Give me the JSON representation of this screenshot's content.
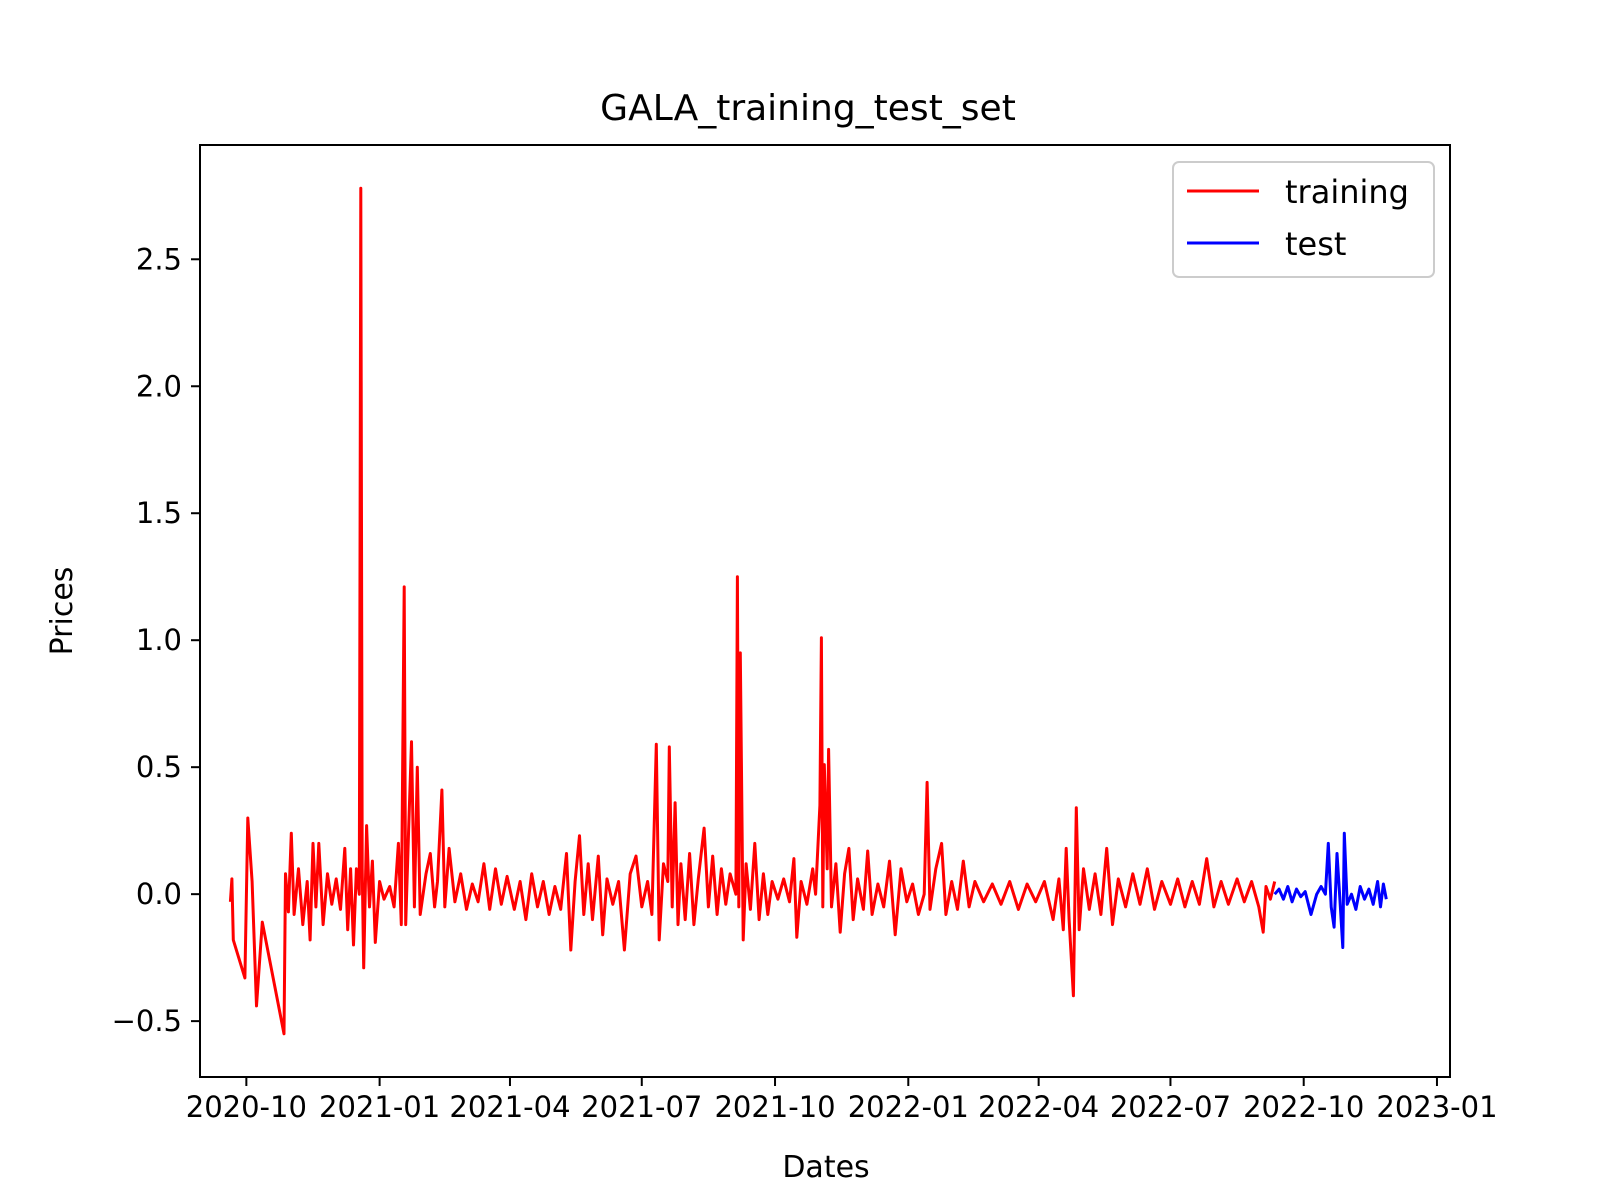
{
  "chart_data": {
    "type": "line",
    "title": "GALA_training_test_set",
    "xlabel": "Dates",
    "ylabel": "Prices",
    "xlim": [
      "2020-08-30",
      "2023-01-10"
    ],
    "ylim": [
      -0.72,
      2.95
    ],
    "x_ticks": [
      "2020-10",
      "2021-01",
      "2021-04",
      "2021-07",
      "2021-10",
      "2022-01",
      "2022-04",
      "2022-07",
      "2022-10",
      "2023-01"
    ],
    "y_ticks": [
      -0.5,
      0.0,
      0.5,
      1.0,
      1.5,
      2.0,
      2.5
    ],
    "y_tick_labels": [
      "−0.5",
      "0.0",
      "0.5",
      "1.0",
      "1.5",
      "2.0",
      "2.5"
    ],
    "legend": {
      "position": "top-right"
    },
    "grid": false,
    "series": [
      {
        "name": "training",
        "color": "#ff0000",
        "points": [
          [
            "2020-09-20",
            -0.03
          ],
          [
            "2020-09-21",
            0.06
          ],
          [
            "2020-09-22",
            -0.18
          ],
          [
            "2020-09-30",
            -0.33
          ],
          [
            "2020-10-02",
            0.3
          ],
          [
            "2020-10-05",
            0.05
          ],
          [
            "2020-10-08",
            -0.44
          ],
          [
            "2020-10-12",
            -0.11
          ],
          [
            "2020-10-27",
            -0.55
          ],
          [
            "2020-10-28",
            0.08
          ],
          [
            "2020-10-30",
            -0.07
          ],
          [
            "2020-11-01",
            0.24
          ],
          [
            "2020-11-03",
            -0.08
          ],
          [
            "2020-11-06",
            0.1
          ],
          [
            "2020-11-09",
            -0.12
          ],
          [
            "2020-11-12",
            0.05
          ],
          [
            "2020-11-14",
            -0.18
          ],
          [
            "2020-11-16",
            0.2
          ],
          [
            "2020-11-18",
            -0.05
          ],
          [
            "2020-11-20",
            0.2
          ],
          [
            "2020-11-23",
            -0.12
          ],
          [
            "2020-11-26",
            0.08
          ],
          [
            "2020-11-29",
            -0.04
          ],
          [
            "2020-12-02",
            0.06
          ],
          [
            "2020-12-05",
            -0.06
          ],
          [
            "2020-12-08",
            0.18
          ],
          [
            "2020-12-10",
            -0.14
          ],
          [
            "2020-12-12",
            0.1
          ],
          [
            "2020-12-14",
            -0.2
          ],
          [
            "2020-12-16",
            0.1
          ],
          [
            "2020-12-18",
            0.0
          ],
          [
            "2020-12-19",
            2.78
          ],
          [
            "2020-12-20",
            0.1
          ],
          [
            "2020-12-21",
            -0.29
          ],
          [
            "2020-12-23",
            0.27
          ],
          [
            "2020-12-25",
            -0.05
          ],
          [
            "2020-12-27",
            0.13
          ],
          [
            "2020-12-29",
            -0.19
          ],
          [
            "2021-01-01",
            0.05
          ],
          [
            "2021-01-04",
            -0.02
          ],
          [
            "2021-01-08",
            0.03
          ],
          [
            "2021-01-11",
            -0.05
          ],
          [
            "2021-01-14",
            0.2
          ],
          [
            "2021-01-16",
            -0.12
          ],
          [
            "2021-01-18",
            1.21
          ],
          [
            "2021-01-19",
            -0.12
          ],
          [
            "2021-01-21",
            0.25
          ],
          [
            "2021-01-23",
            0.6
          ],
          [
            "2021-01-25",
            -0.05
          ],
          [
            "2021-01-27",
            0.5
          ],
          [
            "2021-01-29",
            -0.08
          ],
          [
            "2021-02-02",
            0.08
          ],
          [
            "2021-02-05",
            0.16
          ],
          [
            "2021-02-08",
            -0.05
          ],
          [
            "2021-02-10",
            0.05
          ],
          [
            "2021-02-13",
            0.41
          ],
          [
            "2021-02-15",
            -0.05
          ],
          [
            "2021-02-18",
            0.18
          ],
          [
            "2021-02-22",
            -0.03
          ],
          [
            "2021-02-26",
            0.08
          ],
          [
            "2021-03-02",
            -0.06
          ],
          [
            "2021-03-06",
            0.04
          ],
          [
            "2021-03-10",
            -0.03
          ],
          [
            "2021-03-14",
            0.12
          ],
          [
            "2021-03-18",
            -0.06
          ],
          [
            "2021-03-22",
            0.1
          ],
          [
            "2021-03-26",
            -0.04
          ],
          [
            "2021-03-30",
            0.07
          ],
          [
            "2021-04-04",
            -0.06
          ],
          [
            "2021-04-08",
            0.05
          ],
          [
            "2021-04-12",
            -0.1
          ],
          [
            "2021-04-16",
            0.08
          ],
          [
            "2021-04-20",
            -0.05
          ],
          [
            "2021-04-24",
            0.05
          ],
          [
            "2021-04-28",
            -0.08
          ],
          [
            "2021-05-02",
            0.03
          ],
          [
            "2021-05-06",
            -0.06
          ],
          [
            "2021-05-10",
            0.16
          ],
          [
            "2021-05-13",
            -0.22
          ],
          [
            "2021-05-16",
            0.05
          ],
          [
            "2021-05-19",
            0.23
          ],
          [
            "2021-05-22",
            -0.08
          ],
          [
            "2021-05-25",
            0.12
          ],
          [
            "2021-05-28",
            -0.1
          ],
          [
            "2021-06-01",
            0.15
          ],
          [
            "2021-06-04",
            -0.16
          ],
          [
            "2021-06-07",
            0.06
          ],
          [
            "2021-06-11",
            -0.04
          ],
          [
            "2021-06-15",
            0.05
          ],
          [
            "2021-06-19",
            -0.22
          ],
          [
            "2021-06-23",
            0.08
          ],
          [
            "2021-06-27",
            0.15
          ],
          [
            "2021-07-01",
            -0.05
          ],
          [
            "2021-07-05",
            0.05
          ],
          [
            "2021-07-08",
            -0.08
          ],
          [
            "2021-07-11",
            0.59
          ],
          [
            "2021-07-13",
            -0.18
          ],
          [
            "2021-07-16",
            0.12
          ],
          [
            "2021-07-19",
            0.05
          ],
          [
            "2021-07-20",
            0.58
          ],
          [
            "2021-07-22",
            -0.05
          ],
          [
            "2021-07-24",
            0.36
          ],
          [
            "2021-07-26",
            -0.12
          ],
          [
            "2021-07-28",
            0.12
          ],
          [
            "2021-07-31",
            -0.1
          ],
          [
            "2021-08-03",
            0.16
          ],
          [
            "2021-08-06",
            -0.12
          ],
          [
            "2021-08-09",
            0.06
          ],
          [
            "2021-08-13",
            0.26
          ],
          [
            "2021-08-16",
            -0.05
          ],
          [
            "2021-08-19",
            0.15
          ],
          [
            "2021-08-22",
            -0.08
          ],
          [
            "2021-08-25",
            0.1
          ],
          [
            "2021-08-28",
            -0.04
          ],
          [
            "2021-08-31",
            0.08
          ],
          [
            "2021-09-04",
            0.0
          ],
          [
            "2021-09-05",
            1.25
          ],
          [
            "2021-09-06",
            -0.05
          ],
          [
            "2021-09-07",
            0.95
          ],
          [
            "2021-09-09",
            -0.18
          ],
          [
            "2021-09-11",
            0.12
          ],
          [
            "2021-09-14",
            -0.06
          ],
          [
            "2021-09-17",
            0.2
          ],
          [
            "2021-09-20",
            -0.1
          ],
          [
            "2021-09-23",
            0.08
          ],
          [
            "2021-09-26",
            -0.08
          ],
          [
            "2021-09-29",
            0.05
          ],
          [
            "2021-10-03",
            -0.02
          ],
          [
            "2021-10-07",
            0.06
          ],
          [
            "2021-10-11",
            -0.03
          ],
          [
            "2021-10-14",
            0.14
          ],
          [
            "2021-10-16",
            -0.17
          ],
          [
            "2021-10-19",
            0.05
          ],
          [
            "2021-10-23",
            -0.04
          ],
          [
            "2021-10-27",
            0.1
          ],
          [
            "2021-10-29",
            0.0
          ],
          [
            "2021-11-01",
            0.35
          ],
          [
            "2021-11-02",
            1.01
          ],
          [
            "2021-11-03",
            -0.05
          ],
          [
            "2021-11-04",
            0.51
          ],
          [
            "2021-11-06",
            0.1
          ],
          [
            "2021-11-07",
            0.57
          ],
          [
            "2021-11-09",
            -0.05
          ],
          [
            "2021-11-12",
            0.12
          ],
          [
            "2021-11-15",
            -0.15
          ],
          [
            "2021-11-18",
            0.08
          ],
          [
            "2021-11-21",
            0.18
          ],
          [
            "2021-11-24",
            -0.1
          ],
          [
            "2021-11-27",
            0.06
          ],
          [
            "2021-12-01",
            -0.06
          ],
          [
            "2021-12-04",
            0.17
          ],
          [
            "2021-12-07",
            -0.08
          ],
          [
            "2021-12-11",
            0.04
          ],
          [
            "2021-12-15",
            -0.05
          ],
          [
            "2021-12-19",
            0.13
          ],
          [
            "2021-12-23",
            -0.16
          ],
          [
            "2021-12-27",
            0.1
          ],
          [
            "2021-12-31",
            -0.03
          ],
          [
            "2022-01-04",
            0.04
          ],
          [
            "2022-01-08",
            -0.08
          ],
          [
            "2022-01-12",
            0.0
          ],
          [
            "2022-01-14",
            0.44
          ],
          [
            "2022-01-16",
            -0.06
          ],
          [
            "2022-01-20",
            0.1
          ],
          [
            "2022-01-24",
            0.2
          ],
          [
            "2022-01-27",
            -0.08
          ],
          [
            "2022-01-31",
            0.05
          ],
          [
            "2022-02-04",
            -0.06
          ],
          [
            "2022-02-08",
            0.13
          ],
          [
            "2022-02-12",
            -0.05
          ],
          [
            "2022-02-16",
            0.05
          ],
          [
            "2022-02-22",
            -0.03
          ],
          [
            "2022-02-28",
            0.04
          ],
          [
            "2022-03-06",
            -0.04
          ],
          [
            "2022-03-12",
            0.05
          ],
          [
            "2022-03-18",
            -0.06
          ],
          [
            "2022-03-24",
            0.04
          ],
          [
            "2022-03-30",
            -0.03
          ],
          [
            "2022-04-05",
            0.05
          ],
          [
            "2022-04-11",
            -0.1
          ],
          [
            "2022-04-15",
            0.06
          ],
          [
            "2022-04-18",
            -0.14
          ],
          [
            "2022-04-20",
            0.18
          ],
          [
            "2022-04-22",
            -0.1
          ],
          [
            "2022-04-25",
            -0.4
          ],
          [
            "2022-04-27",
            0.34
          ],
          [
            "2022-04-29",
            -0.14
          ],
          [
            "2022-05-02",
            0.1
          ],
          [
            "2022-05-06",
            -0.06
          ],
          [
            "2022-05-10",
            0.08
          ],
          [
            "2022-05-14",
            -0.08
          ],
          [
            "2022-05-18",
            0.18
          ],
          [
            "2022-05-22",
            -0.12
          ],
          [
            "2022-05-26",
            0.06
          ],
          [
            "2022-05-31",
            -0.05
          ],
          [
            "2022-06-05",
            0.08
          ],
          [
            "2022-06-10",
            -0.04
          ],
          [
            "2022-06-15",
            0.1
          ],
          [
            "2022-06-20",
            -0.06
          ],
          [
            "2022-06-25",
            0.05
          ],
          [
            "2022-07-01",
            -0.04
          ],
          [
            "2022-07-06",
            0.06
          ],
          [
            "2022-07-11",
            -0.05
          ],
          [
            "2022-07-16",
            0.05
          ],
          [
            "2022-07-21",
            -0.04
          ],
          [
            "2022-07-26",
            0.14
          ],
          [
            "2022-07-31",
            -0.05
          ],
          [
            "2022-08-05",
            0.05
          ],
          [
            "2022-08-10",
            -0.04
          ],
          [
            "2022-08-16",
            0.06
          ],
          [
            "2022-08-21",
            -0.03
          ],
          [
            "2022-08-26",
            0.05
          ],
          [
            "2022-08-31",
            -0.05
          ],
          [
            "2022-09-03",
            -0.15
          ],
          [
            "2022-09-05",
            0.03
          ],
          [
            "2022-09-08",
            -0.02
          ],
          [
            "2022-09-11",
            0.05
          ]
        ]
      },
      {
        "name": "test",
        "color": "#0000ff",
        "points": [
          [
            "2022-09-11",
            0.0
          ],
          [
            "2022-09-14",
            0.02
          ],
          [
            "2022-09-17",
            -0.02
          ],
          [
            "2022-09-20",
            0.03
          ],
          [
            "2022-09-23",
            -0.03
          ],
          [
            "2022-09-26",
            0.02
          ],
          [
            "2022-09-29",
            -0.01
          ],
          [
            "2022-10-02",
            0.01
          ],
          [
            "2022-10-06",
            -0.08
          ],
          [
            "2022-10-10",
            0.0
          ],
          [
            "2022-10-13",
            0.03
          ],
          [
            "2022-10-16",
            0.0
          ],
          [
            "2022-10-18",
            0.2
          ],
          [
            "2022-10-20",
            -0.05
          ],
          [
            "2022-10-22",
            -0.13
          ],
          [
            "2022-10-24",
            0.16
          ],
          [
            "2022-10-26",
            -0.02
          ],
          [
            "2022-10-28",
            -0.21
          ],
          [
            "2022-10-29",
            0.24
          ],
          [
            "2022-10-31",
            -0.04
          ],
          [
            "2022-11-03",
            0.0
          ],
          [
            "2022-11-06",
            -0.06
          ],
          [
            "2022-11-09",
            0.03
          ],
          [
            "2022-11-12",
            -0.02
          ],
          [
            "2022-11-15",
            0.02
          ],
          [
            "2022-11-18",
            -0.04
          ],
          [
            "2022-11-21",
            0.05
          ],
          [
            "2022-11-23",
            -0.05
          ],
          [
            "2022-11-25",
            0.04
          ],
          [
            "2022-11-27",
            -0.02
          ]
        ]
      }
    ]
  }
}
